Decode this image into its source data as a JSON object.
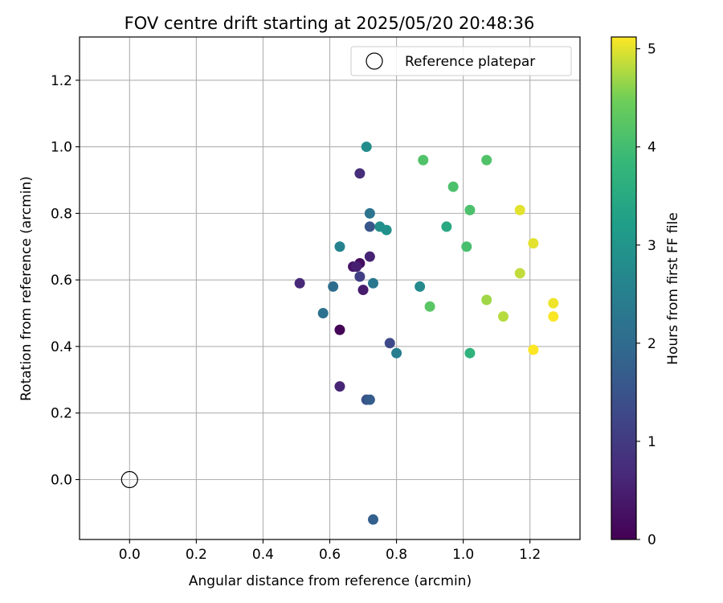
{
  "chart_data": {
    "type": "scatter",
    "title": "FOV centre drift starting at 2025/05/20 20:48:36",
    "xlabel": "Angular distance from reference (arcmin)",
    "ylabel": "Rotation from reference (arcmin)",
    "xlim": [
      -0.15,
      1.35
    ],
    "ylim": [
      -0.18,
      1.33
    ],
    "xticks": [
      "0.0",
      "0.2",
      "0.4",
      "0.6",
      "0.8",
      "1.0",
      "1.2"
    ],
    "yticks": [
      "0.0",
      "0.2",
      "0.4",
      "0.6",
      "0.8",
      "1.0",
      "1.2"
    ],
    "grid": true,
    "legend": {
      "placement": "top-right",
      "entries": [
        {
          "label": "Reference platepar",
          "marker": "open-circle",
          "x": 0.0,
          "y": 0.0
        }
      ]
    },
    "colorbar": {
      "label": "Hours from first FF file",
      "colormap": "viridis",
      "range": [
        0,
        5.12
      ],
      "ticks": [
        "0",
        "1",
        "2",
        "3",
        "4",
        "5"
      ]
    },
    "points": [
      {
        "x": 0.63,
        "y": 0.45,
        "c": 0.05
      },
      {
        "x": 0.69,
        "y": 0.65,
        "c": 0.2
      },
      {
        "x": 0.67,
        "y": 0.64,
        "c": 0.3
      },
      {
        "x": 0.7,
        "y": 0.57,
        "c": 0.45
      },
      {
        "x": 0.68,
        "y": 0.64,
        "c": 0.5
      },
      {
        "x": 0.72,
        "y": 0.67,
        "c": 0.55
      },
      {
        "x": 0.63,
        "y": 0.28,
        "c": 0.6
      },
      {
        "x": 0.51,
        "y": 0.59,
        "c": 0.65
      },
      {
        "x": 0.69,
        "y": 0.92,
        "c": 0.75
      },
      {
        "x": 0.69,
        "y": 0.61,
        "c": 1.1
      },
      {
        "x": 0.78,
        "y": 0.41,
        "c": 1.3
      },
      {
        "x": 0.71,
        "y": 0.24,
        "c": 1.45
      },
      {
        "x": 0.72,
        "y": 0.76,
        "c": 1.55
      },
      {
        "x": 0.72,
        "y": 0.24,
        "c": 1.7
      },
      {
        "x": 0.73,
        "y": -0.12,
        "c": 1.75
      },
      {
        "x": 0.61,
        "y": 0.58,
        "c": 2.05
      },
      {
        "x": 0.58,
        "y": 0.5,
        "c": 2.15
      },
      {
        "x": 0.72,
        "y": 0.8,
        "c": 2.2
      },
      {
        "x": 0.73,
        "y": 0.59,
        "c": 2.3
      },
      {
        "x": 0.8,
        "y": 0.38,
        "c": 2.45
      },
      {
        "x": 0.63,
        "y": 0.7,
        "c": 2.55
      },
      {
        "x": 0.87,
        "y": 0.58,
        "c": 2.75
      },
      {
        "x": 0.71,
        "y": 1.0,
        "c": 2.8
      },
      {
        "x": 0.75,
        "y": 0.76,
        "c": 2.85
      },
      {
        "x": 0.77,
        "y": 0.75,
        "c": 2.9
      },
      {
        "x": 0.95,
        "y": 0.76,
        "c": 3.45
      },
      {
        "x": 1.02,
        "y": 0.38,
        "c": 3.7
      },
      {
        "x": 1.01,
        "y": 0.7,
        "c": 4.05
      },
      {
        "x": 1.02,
        "y": 0.81,
        "c": 4.1
      },
      {
        "x": 0.97,
        "y": 0.88,
        "c": 4.1
      },
      {
        "x": 0.88,
        "y": 0.96,
        "c": 4.15
      },
      {
        "x": 1.07,
        "y": 0.96,
        "c": 4.15
      },
      {
        "x": 0.9,
        "y": 0.52,
        "c": 4.25
      },
      {
        "x": 1.07,
        "y": 0.54,
        "c": 4.7
      },
      {
        "x": 1.12,
        "y": 0.49,
        "c": 4.8
      },
      {
        "x": 1.17,
        "y": 0.62,
        "c": 4.85
      },
      {
        "x": 1.17,
        "y": 0.81,
        "c": 5.0
      },
      {
        "x": 1.21,
        "y": 0.71,
        "c": 5.0
      },
      {
        "x": 1.27,
        "y": 0.53,
        "c": 5.05
      },
      {
        "x": 1.27,
        "y": 0.49,
        "c": 5.1
      },
      {
        "x": 1.21,
        "y": 0.39,
        "c": 5.12
      }
    ]
  }
}
